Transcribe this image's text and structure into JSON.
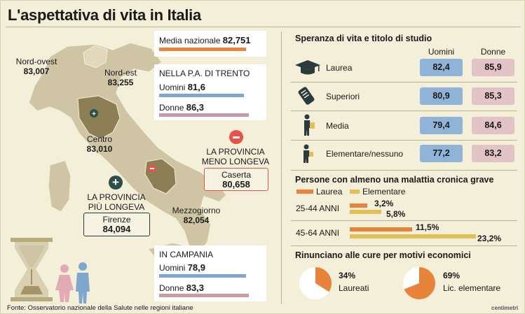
{
  "title": "L'aspettativa di vita in Italia",
  "source": "Fonte: Osservatorio nazionale della Salute nelle regioni italiane",
  "brand": "centimetri",
  "colors": {
    "background": "#f3efd8",
    "map": "#cfc4a4",
    "highlight": "#8c7f55",
    "orange": "#e8843a",
    "blue": "#7ea7ce",
    "pink": "#c79aa6",
    "yellow": "#e3c057",
    "minus": "#e8524a",
    "plus": "#2d4f47"
  },
  "national": {
    "label": "Media nazionale",
    "value": "82,751"
  },
  "regions": [
    {
      "name": "Nord-ovest",
      "value": "83,007"
    },
    {
      "name": "Nord-est",
      "value": "83,255"
    },
    {
      "name": "Centro",
      "value": "83,010"
    },
    {
      "name": "Mezzogiorno",
      "value": "82,054"
    }
  ],
  "trento": {
    "title": "NELLA P.A. DI TRENTO",
    "men_label": "Uomini",
    "men_value": "81,6",
    "women_label": "Donne",
    "women_value": "86,3"
  },
  "campania": {
    "title": "IN CAMPANIA",
    "men_label": "Uomini",
    "men_value": "78,9",
    "women_label": "Donne",
    "women_value": "83,3"
  },
  "least_long_lived": {
    "heading_1": "LA PROVINCIA",
    "heading_2": "MENO LONGEVA",
    "name": "Caserta",
    "value": "80,658",
    "symbol": "minus-icon"
  },
  "most_long_lived": {
    "heading_1": "LA PROVINCIA",
    "heading_2": "PIÙ LONGEVA",
    "name": "Firenze",
    "value": "84,094",
    "symbol": "plus-icon"
  },
  "education": {
    "title": "Speranza di vita e titolo di studio",
    "col_men": "Uomini",
    "col_women": "Donne",
    "rows": [
      {
        "label": "Laurea",
        "men": "82,4",
        "women": "85,9",
        "icon": "graduation-cap-icon"
      },
      {
        "label": "Superiori",
        "men": "80,9",
        "women": "85,3",
        "icon": "diploma-icon"
      },
      {
        "label": "Media",
        "men": "79,4",
        "women": "84,6",
        "icon": "student-icon"
      },
      {
        "label": "Elementare/nessuno",
        "men": "77,2",
        "women": "83,2",
        "icon": "child-icon"
      }
    ]
  },
  "chronic": {
    "title": "Persone con almeno una malattia cronica grave",
    "legend": [
      "Laurea",
      "Elementare"
    ],
    "groups": [
      {
        "label": "25-44 ANNI",
        "laurea": 3.2,
        "elementare": 5.8,
        "laurea_text": "3,2%",
        "elementare_text": "5,8%"
      },
      {
        "label": "45-64 ANNI",
        "laurea": 11.5,
        "elementare": 23.2,
        "laurea_text": "11,5%",
        "elementare_text": "23,2%"
      }
    ]
  },
  "renounce": {
    "title": "Rinunciano alle cure per motivi economici",
    "items": [
      {
        "percent": 34,
        "text": "34%",
        "label": "Laureati"
      },
      {
        "percent": 69,
        "text": "69%",
        "label": "Lic. elementare"
      }
    ]
  }
}
